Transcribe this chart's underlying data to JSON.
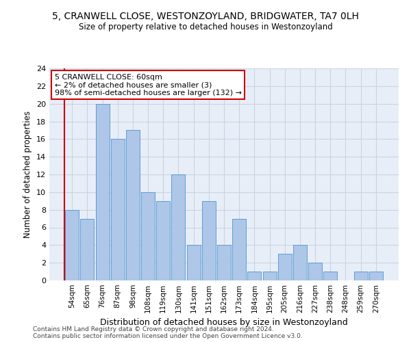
{
  "title1": "5, CRANWELL CLOSE, WESTONZOYLAND, BRIDGWATER, TA7 0LH",
  "title2": "Size of property relative to detached houses in Westonzoyland",
  "xlabel": "Distribution of detached houses by size in Westonzoyland",
  "ylabel": "Number of detached properties",
  "categories": [
    "54sqm",
    "65sqm",
    "76sqm",
    "87sqm",
    "98sqm",
    "108sqm",
    "119sqm",
    "130sqm",
    "141sqm",
    "151sqm",
    "162sqm",
    "173sqm",
    "184sqm",
    "195sqm",
    "205sqm",
    "216sqm",
    "227sqm",
    "238sqm",
    "248sqm",
    "259sqm",
    "270sqm"
  ],
  "values": [
    8,
    7,
    20,
    16,
    17,
    10,
    9,
    12,
    4,
    9,
    4,
    7,
    1,
    1,
    3,
    4,
    2,
    1,
    0,
    1,
    1
  ],
  "bar_color": "#aec6e8",
  "bar_edge_color": "#5a9fd4",
  "annotation_title": "5 CRANWELL CLOSE: 60sqm",
  "annotation_line2": "← 2% of detached houses are smaller (3)",
  "annotation_line3": "98% of semi-detached houses are larger (132) →",
  "annotation_box_color": "#ffffff",
  "annotation_box_edge_color": "#cc0000",
  "vline_color": "#cc0000",
  "ylim": [
    0,
    24
  ],
  "yticks": [
    0,
    2,
    4,
    6,
    8,
    10,
    12,
    14,
    16,
    18,
    20,
    22,
    24
  ],
  "grid_color": "#c8d4e0",
  "bg_color": "#e8eef8",
  "footer1": "Contains HM Land Registry data © Crown copyright and database right 2024.",
  "footer2": "Contains public sector information licensed under the Open Government Licence v3.0."
}
